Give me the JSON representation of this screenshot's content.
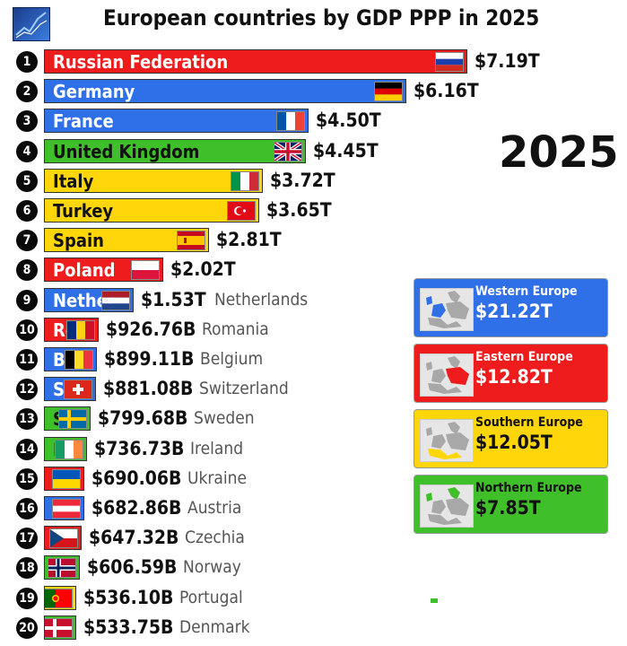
{
  "title": "European countries by GDP PPP in 2025",
  "year": "2025",
  "logo_icon": "chart-logo-icon",
  "chart_data": {
    "type": "bar",
    "orientation": "horizontal",
    "title": "European countries by GDP PPP in 2025",
    "unit": "trillion USD",
    "categories": [
      "Russian Federation",
      "Germany",
      "France",
      "United Kingdom",
      "Italy",
      "Turkey",
      "Spain",
      "Poland",
      "Netherlands",
      "Romania",
      "Belgium",
      "Switzerland",
      "Sweden",
      "Ireland",
      "Ukraine",
      "Austria",
      "Czechia",
      "Norway",
      "Portugal",
      "Denmark"
    ],
    "values": [
      7.19,
      6.16,
      4.5,
      4.45,
      3.72,
      3.65,
      2.81,
      2.02,
      1.53,
      0.92676,
      0.89911,
      0.88108,
      0.79968,
      0.73673,
      0.69006,
      0.68286,
      0.64732,
      0.60659,
      0.5361,
      0.53375
    ],
    "bars": [
      {
        "rank": "1",
        "name": "Russian Federation",
        "bar_text": "Russian Federation",
        "value": "$7.19T",
        "outside_name": "",
        "color": "#ee1c1c",
        "text_color": "#ffffff",
        "flag": "russia-flag-icon"
      },
      {
        "rank": "2",
        "name": "Germany",
        "bar_text": "Germany",
        "value": "$6.16T",
        "outside_name": "",
        "color": "#2f6fe8",
        "text_color": "#ffffff",
        "flag": "germany-flag-icon"
      },
      {
        "rank": "3",
        "name": "France",
        "bar_text": "France",
        "value": "$4.50T",
        "outside_name": "",
        "color": "#2f6fe8",
        "text_color": "#ffffff",
        "flag": "france-flag-icon"
      },
      {
        "rank": "4",
        "name": "United Kingdom",
        "bar_text": "United Kingdom",
        "value": "$4.45T",
        "outside_name": "",
        "color": "#3fbf2a",
        "text_color": "#111111",
        "flag": "uk-flag-icon"
      },
      {
        "rank": "5",
        "name": "Italy",
        "bar_text": "Italy",
        "value": "$3.72T",
        "outside_name": "",
        "color": "#ffd60a",
        "text_color": "#111111",
        "flag": "italy-flag-icon"
      },
      {
        "rank": "6",
        "name": "Turkey",
        "bar_text": "Turkey",
        "value": "$3.65T",
        "outside_name": "",
        "color": "#ffd60a",
        "text_color": "#111111",
        "flag": "turkey-flag-icon"
      },
      {
        "rank": "7",
        "name": "Spain",
        "bar_text": "Spain",
        "value": "$2.81T",
        "outside_name": "",
        "color": "#ffd60a",
        "text_color": "#111111",
        "flag": "spain-flag-icon"
      },
      {
        "rank": "8",
        "name": "Poland",
        "bar_text": "Poland",
        "value": "$2.02T",
        "outside_name": "",
        "color": "#ee1c1c",
        "text_color": "#ffffff",
        "flag": "poland-flag-icon"
      },
      {
        "rank": "9",
        "name": "Netherlands",
        "bar_text": "Nether",
        "value": "$1.53T",
        "outside_name": "Netherlands",
        "color": "#2f6fe8",
        "text_color": "#ffffff",
        "flag": "netherlands-flag-icon"
      },
      {
        "rank": "10",
        "name": "Romania",
        "bar_text": "Ro",
        "value": "$926.76B",
        "outside_name": "Romania",
        "color": "#ee1c1c",
        "text_color": "#ffffff",
        "flag": "romania-flag-icon"
      },
      {
        "rank": "11",
        "name": "Belgium",
        "bar_text": "Be",
        "value": "$899.11B",
        "outside_name": "Belgium",
        "color": "#2f6fe8",
        "text_color": "#ffffff",
        "flag": "belgium-flag-icon"
      },
      {
        "rank": "12",
        "name": "Switzerland",
        "bar_text": "Sw",
        "value": "$881.08B",
        "outside_name": "Switzerland",
        "color": "#2f6fe8",
        "text_color": "#ffffff",
        "flag": "switzerland-flag-icon"
      },
      {
        "rank": "13",
        "name": "Sweden",
        "bar_text": "Sw",
        "value": "$799.68B",
        "outside_name": "Sweden",
        "color": "#3fbf2a",
        "text_color": "#111111",
        "flag": "sweden-flag-icon"
      },
      {
        "rank": "14",
        "name": "Ireland",
        "bar_text": "Ir",
        "value": "$736.73B",
        "outside_name": "Ireland",
        "color": "#3fbf2a",
        "text_color": "#111111",
        "flag": "ireland-flag-icon"
      },
      {
        "rank": "15",
        "name": "Ukraine",
        "bar_text": "",
        "value": "$690.06B",
        "outside_name": "Ukraine",
        "color": "#ee1c1c",
        "text_color": "#ffffff",
        "flag": "ukraine-flag-icon"
      },
      {
        "rank": "16",
        "name": "Austria",
        "bar_text": "",
        "value": "$682.86B",
        "outside_name": "Austria",
        "color": "#2f6fe8",
        "text_color": "#ffffff",
        "flag": "austria-flag-icon"
      },
      {
        "rank": "17",
        "name": "Czechia",
        "bar_text": "",
        "value": "$647.32B",
        "outside_name": "Czechia",
        "color": "#ee1c1c",
        "text_color": "#ffffff",
        "flag": "czechia-flag-icon"
      },
      {
        "rank": "18",
        "name": "Norway",
        "bar_text": "",
        "value": "$606.59B",
        "outside_name": "Norway",
        "color": "#3fbf2a",
        "text_color": "#111111",
        "flag": "norway-flag-icon"
      },
      {
        "rank": "19",
        "name": "Portugal",
        "bar_text": "",
        "value": "$536.10B",
        "outside_name": "Portugal",
        "color": "#ffd60a",
        "text_color": "#111111",
        "flag": "portugal-flag-icon"
      },
      {
        "rank": "20",
        "name": "Denmark",
        "bar_text": "",
        "value": "$533.75B",
        "outside_name": "Denmark",
        "color": "#3fbf2a",
        "text_color": "#111111",
        "flag": "denmark-flag-icon"
      }
    ],
    "legend": [
      {
        "name": "Western Europe",
        "value": "$21.22T",
        "color": "#2f6fe8",
        "text_color": "#ffffff",
        "icon": "western-europe-map-icon"
      },
      {
        "name": "Eastern Europe",
        "value": "$12.82T",
        "color": "#ee1c1c",
        "text_color": "#ffffff",
        "icon": "eastern-europe-map-icon"
      },
      {
        "name": "Southern Europe",
        "value": "$12.05T",
        "color": "#ffd60a",
        "text_color": "#111111",
        "icon": "southern-europe-map-icon"
      },
      {
        "name": "Northern Europe",
        "value": "$7.85T",
        "color": "#3fbf2a",
        "text_color": "#111111",
        "icon": "northern-europe-map-icon"
      }
    ],
    "legend_placement": "right"
  }
}
